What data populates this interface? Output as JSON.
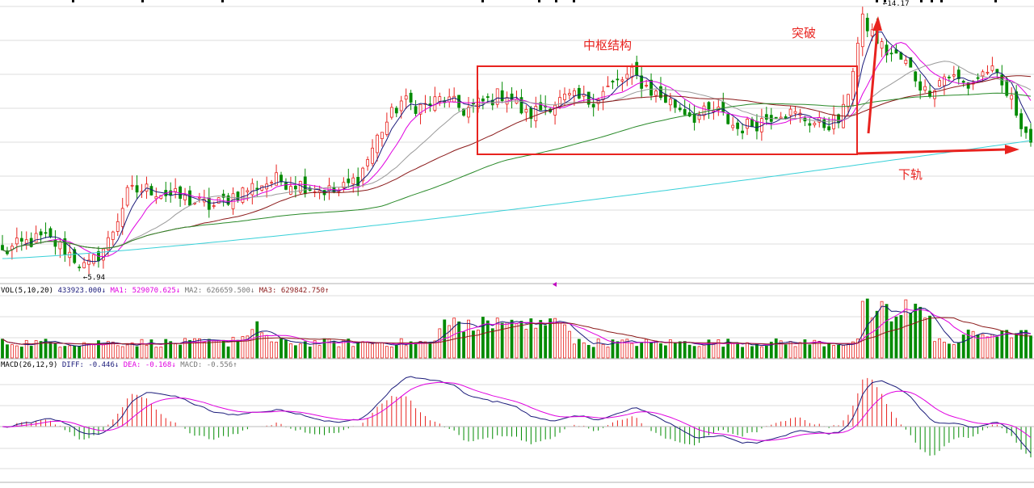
{
  "chart_data": [
    {
      "type": "candlestick",
      "panel": "price",
      "price_markers": {
        "low_label": "5.94",
        "high_label": "14.17"
      },
      "annotations": {
        "box_label": "中枢结构",
        "breakout_label": "突破",
        "lower_rail_label": "下轨"
      },
      "moving_averages": [
        "short MA (navy)",
        "MA (magenta)",
        "MA (grey)",
        "MA (dark red)",
        "MA (green)",
        "MA (cyan)"
      ],
      "colors": {
        "up": "#e8231f",
        "down": "#008a00",
        "ma_navy": "#1a1a7a",
        "ma_magenta": "#e000e0",
        "ma_grey": "#9a9a9a",
        "ma_darkred": "#8b1a1a",
        "ma_green": "#2a8a2a",
        "ma_cyan": "#38d0d8",
        "annotation": "#e8231f"
      },
      "approx_price_path": [
        6.5,
        6.8,
        7.0,
        6.6,
        5.94,
        6.8,
        8.5,
        8.6,
        8.4,
        8.2,
        8.0,
        8.4,
        8.7,
        8.9,
        8.8,
        8.6,
        8.5,
        9.0,
        10.5,
        11.5,
        11.3,
        11.6,
        11.2,
        11.5,
        11.8,
        11.0,
        11.4,
        11.6,
        11.5,
        12.0,
        12.4,
        11.8,
        11.4,
        11.0,
        11.2,
        10.6,
        10.8,
        11.2,
        11.0,
        10.7,
        10.9,
        14.17,
        13.2,
        12.8,
        11.8,
        12.4,
        12.0,
        12.6,
        11.6,
        10.2
      ],
      "grid": true
    },
    {
      "type": "bar",
      "panel": "volume",
      "header": {
        "name": "VOL(5,10,20)",
        "value": "433923.000↓",
        "ma1": "MA1: 529070.625↓",
        "ma2": "MA2: 626659.500↓",
        "ma3": "MA3: 629842.750↑"
      }
    },
    {
      "type": "bar",
      "panel": "macd",
      "header": {
        "name": "MACD(26,12,9)",
        "diff": "DIFF: -0.446↓",
        "dea": "DEA: -0.168↓",
        "macd": "MACD: -0.556↑"
      },
      "zero_line": 0
    }
  ]
}
